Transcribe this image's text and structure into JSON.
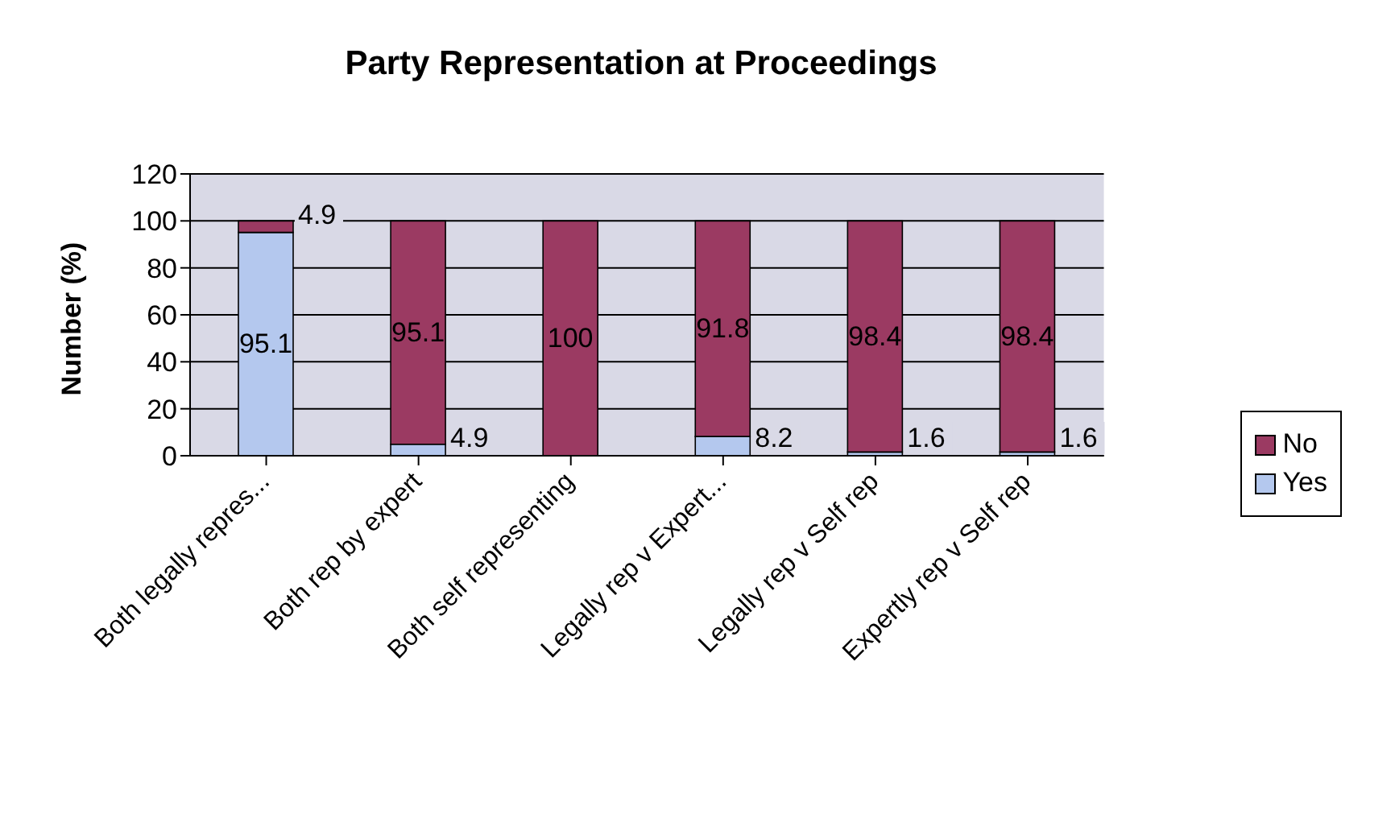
{
  "chart_data": {
    "type": "bar",
    "title": "Party Representation at Proceedings",
    "ylabel": "Number (%)",
    "categories": [
      "Both legally repres...",
      "Both rep by expert",
      "Both self representing",
      "Legally rep v Expert...",
      "Legally rep v Self rep",
      "Expertly rep v Self rep"
    ],
    "stacked": true,
    "series": [
      {
        "name": "Yes",
        "color": "#b4c8ee",
        "values": [
          95.1,
          4.9,
          0,
          8.2,
          1.6,
          1.6
        ],
        "value_labels": [
          "95.1",
          "4.9",
          null,
          "8.2",
          "1.6",
          "1.6"
        ]
      },
      {
        "name": "No",
        "color": "#9b3a62",
        "values": [
          4.9,
          95.1,
          100,
          91.8,
          98.4,
          98.4
        ],
        "value_labels": [
          "4.9",
          "95.1",
          "100",
          "91.8",
          "98.4",
          "98.4"
        ]
      }
    ],
    "ylim": [
      0,
      120
    ],
    "yticks": [
      0,
      20,
      40,
      60,
      80,
      100,
      120
    ],
    "grid": "y",
    "legend": "right"
  }
}
